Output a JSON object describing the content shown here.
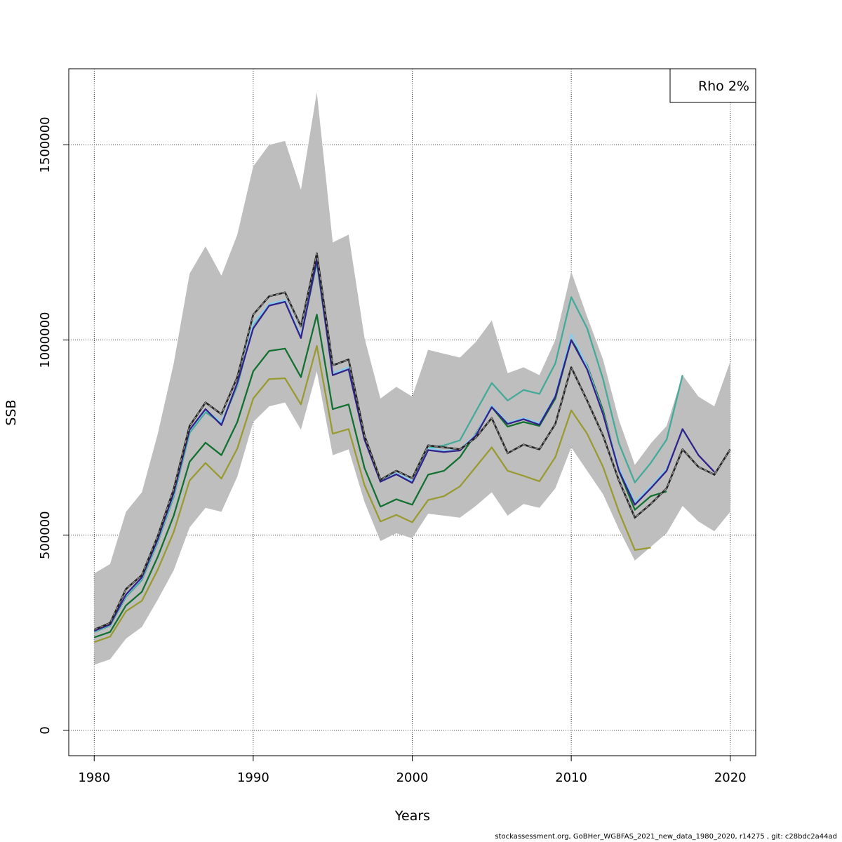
{
  "chart_data": {
    "type": "line",
    "xlabel": "Years",
    "ylabel": "SSB",
    "xlim": [
      1978.4,
      2021.6
    ],
    "ylim": [
      -65000,
      1695000
    ],
    "x_ticks": [
      1980,
      1990,
      2000,
      2010,
      2020
    ],
    "y_ticks": [
      0,
      500000,
      1000000,
      1500000
    ],
    "grid": true,
    "legend": {
      "position": "top-right",
      "text": "Rho 2%"
    },
    "band": {
      "color": "#bebebe",
      "years": [
        1980,
        1981,
        1982,
        1983,
        1984,
        1985,
        1986,
        1987,
        1988,
        1989,
        1990,
        1991,
        1992,
        1993,
        1994,
        1995,
        1996,
        1997,
        1998,
        1999,
        2000,
        2001,
        2002,
        2003,
        2004,
        2005,
        2006,
        2007,
        2008,
        2009,
        2010,
        2011,
        2012,
        2013,
        2014,
        2015,
        2016,
        2017,
        2018,
        2019,
        2020
      ],
      "upper": [
        402000,
        426000,
        560000,
        610000,
        760000,
        940000,
        1170000,
        1240000,
        1165000,
        1270000,
        1445000,
        1500000,
        1510000,
        1385000,
        1635000,
        1250000,
        1270000,
        1005000,
        850000,
        880000,
        855000,
        975000,
        965000,
        955000,
        995000,
        1050000,
        915000,
        930000,
        910000,
        1000000,
        1175000,
        1060000,
        950000,
        795000,
        680000,
        735000,
        780000,
        910000,
        855000,
        830000,
        945000
      ],
      "lower": [
        168000,
        182000,
        235000,
        265000,
        335000,
        410000,
        520000,
        570000,
        560000,
        650000,
        790000,
        830000,
        840000,
        770000,
        920000,
        705000,
        720000,
        585000,
        485000,
        505000,
        492000,
        555000,
        550000,
        545000,
        575000,
        610000,
        550000,
        580000,
        570000,
        620000,
        725000,
        665000,
        605000,
        515000,
        435000,
        470000,
        505000,
        575000,
        535000,
        510000,
        560000
      ]
    },
    "series": [
      {
        "color": "#9a9a32",
        "years": [
          1980,
          1981,
          1982,
          1983,
          1984,
          1985,
          1986,
          1987,
          1988,
          1989,
          1990,
          1991,
          1992,
          1993,
          1994,
          1995,
          1996,
          1997,
          1998,
          1999,
          2000,
          2001,
          2002,
          2003,
          2004,
          2005,
          2006,
          2007,
          2008,
          2009,
          2010,
          2011,
          2012,
          2013,
          2014,
          2015
        ],
        "values": [
          226000,
          240000,
          305000,
          332000,
          412000,
          508000,
          640000,
          685000,
          645000,
          722000,
          850000,
          900000,
          902000,
          835000,
          985000,
          760000,
          772000,
          628000,
          535000,
          552000,
          533000,
          590000,
          600000,
          625000,
          675000,
          725000,
          665000,
          652000,
          638000,
          700000,
          820000,
          760000,
          675000,
          560000,
          462000,
          468000
        ]
      },
      {
        "color": "#127031",
        "years": [
          1980,
          1981,
          1982,
          1983,
          1984,
          1985,
          1986,
          1987,
          1988,
          1989,
          1990,
          1991,
          1992,
          1993,
          1994,
          1995,
          1996,
          1997,
          1998,
          1999,
          2000,
          2001,
          2002,
          2003,
          2004,
          2005,
          2006,
          2007,
          2008,
          2009,
          2010,
          2011,
          2012,
          2013,
          2014,
          2015,
          2016
        ],
        "values": [
          238000,
          252000,
          320000,
          355000,
          445000,
          550000,
          688000,
          737000,
          705000,
          790000,
          920000,
          972000,
          978000,
          905000,
          1065000,
          823000,
          835000,
          672000,
          573000,
          592000,
          578000,
          655000,
          665000,
          700000,
          760000,
          828000,
          778000,
          790000,
          780000,
          850000,
          1000000,
          935000,
          820000,
          665000,
          565000,
          600000,
          612000
        ]
      },
      {
        "color": "#44aa99",
        "years": [
          1980,
          1981,
          1982,
          1983,
          1984,
          1985,
          1986,
          1987,
          1988,
          1989,
          1990,
          1991,
          1992,
          1993,
          1994,
          1995,
          1996,
          1997,
          1998,
          1999,
          2000,
          2001,
          2002,
          2003,
          2004,
          2005,
          2006,
          2007,
          2008,
          2009,
          2010,
          2011,
          2012,
          2013,
          2014,
          2015,
          2016,
          2017
        ],
        "values": [
          252000,
          268000,
          342000,
          385000,
          482000,
          598000,
          762000,
          815000,
          787000,
          882000,
          1040000,
          1090000,
          1100000,
          1008000,
          1198000,
          910000,
          925000,
          745000,
          637000,
          656000,
          637000,
          723000,
          730000,
          743000,
          817000,
          890000,
          845000,
          872000,
          862000,
          940000,
          1110000,
          1030000,
          900000,
          735000,
          635000,
          685000,
          745000,
          910000
        ]
      },
      {
        "color": "#88ccee",
        "years": [
          1980,
          1981,
          1982,
          1983,
          1984,
          1985,
          1986,
          1987,
          1988,
          1989,
          1990,
          1991,
          1992,
          1993,
          1994,
          1995,
          1996,
          1997,
          1998,
          1999,
          2000,
          2001,
          2002,
          2003,
          2004,
          2005,
          2006,
          2007,
          2008,
          2009,
          2010,
          2011,
          2012,
          2013,
          2014,
          2015,
          2016,
          2017,
          2018
        ],
        "values": [
          254000,
          270000,
          346000,
          390000,
          487000,
          605000,
          768000,
          820000,
          790000,
          887000,
          1042000,
          1092000,
          1102000,
          1010000,
          1208000,
          915000,
          930000,
          748000,
          639000,
          659000,
          639000,
          723000,
          716000,
          720000,
          758000,
          832000,
          788000,
          800000,
          787000,
          858000,
          1015000,
          932000,
          812000,
          672000,
          585000,
          625000,
          670000,
          770000,
          706000
        ]
      },
      {
        "color": "#332288",
        "years": [
          1980,
          1981,
          1982,
          1983,
          1984,
          1985,
          1986,
          1987,
          1988,
          1989,
          1990,
          1991,
          1992,
          1993,
          1994,
          1995,
          1996,
          1997,
          1998,
          1999,
          2000,
          2001,
          2002,
          2003,
          2004,
          2005,
          2006,
          2007,
          2008,
          2009,
          2010,
          2011,
          2012,
          2013,
          2014,
          2015,
          2016,
          2017,
          2018,
          2019
        ],
        "values": [
          255000,
          271000,
          348000,
          392000,
          490000,
          608000,
          770000,
          823000,
          782000,
          890000,
          1030000,
          1088000,
          1098000,
          1005000,
          1205000,
          910000,
          925000,
          745000,
          637000,
          656000,
          634000,
          718000,
          713000,
          717000,
          755000,
          828000,
          785000,
          797000,
          783000,
          855000,
          1000000,
          925000,
          810000,
          665000,
          578000,
          620000,
          665000,
          772000,
          705000,
          662000
        ]
      },
      {
        "color": "#222222",
        "dashed": true,
        "years": [
          1980,
          1981,
          1982,
          1983,
          1984,
          1985,
          1986,
          1987,
          1988,
          1989,
          1990,
          1991,
          1992,
          1993,
          1994,
          1995,
          1996,
          1997,
          1998,
          1999,
          2000,
          2001,
          2002,
          2003,
          2004,
          2005,
          2006,
          2007,
          2008,
          2009,
          2010,
          2011,
          2012,
          2013,
          2014,
          2015,
          2016,
          2017,
          2018,
          2019,
          2020
        ],
        "values": [
          258000,
          275000,
          362000,
          398000,
          498000,
          618000,
          780000,
          840000,
          810000,
          905000,
          1065000,
          1112000,
          1122000,
          1035000,
          1222000,
          935000,
          950000,
          755000,
          642000,
          665000,
          646000,
          730000,
          725000,
          720000,
          750000,
          800000,
          710000,
          732000,
          720000,
          785000,
          930000,
          845000,
          755000,
          640000,
          545000,
          580000,
          620000,
          720000,
          675000,
          655000,
          720000
        ]
      }
    ]
  },
  "footer": "stockassessment.org, GoBHer_WGBFAS_2021_new_data_1980_2020, r14275 , git: c28bdc2a44ad"
}
